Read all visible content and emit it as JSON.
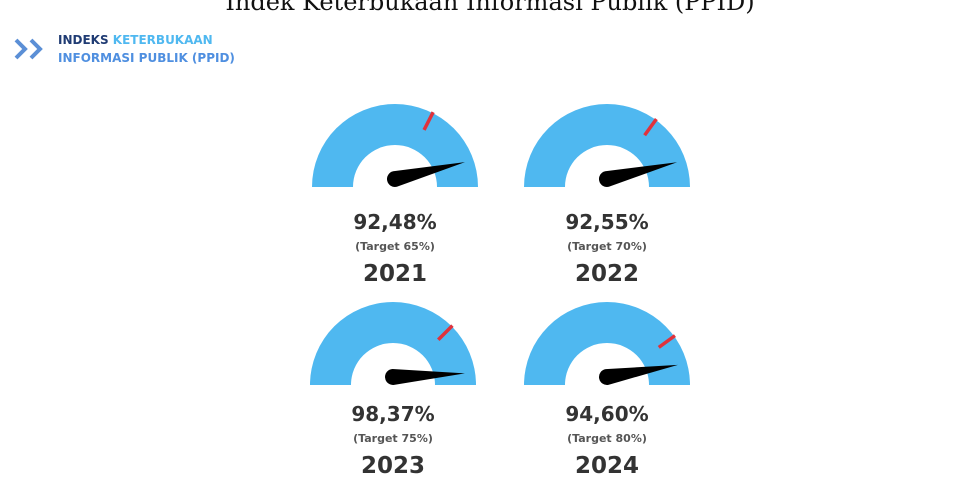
{
  "page_title": "Indek Keterbukaan Informasi Publik (PPID)",
  "header": {
    "line1_dark": "INDEKS",
    "line1_light": "KETERBUKAAN",
    "line2": "INFORMASI PUBLIK (PPID)"
  },
  "chart_data": [
    {
      "type": "gauge",
      "title": "2021",
      "values": [
        92.48
      ],
      "value_labels": [
        "92,48%"
      ],
      "target": 65,
      "target_label": "(Target 65%)",
      "ylim": [
        0,
        100
      ],
      "color": "#4fb8f0",
      "target_color": "#e0323c",
      "needle_color": "#000000"
    },
    {
      "type": "gauge",
      "title": "2022",
      "values": [
        92.55
      ],
      "value_labels": [
        "92,55%"
      ],
      "target": 70,
      "target_label": "(Target 70%)",
      "ylim": [
        0,
        100
      ],
      "color": "#4fb8f0",
      "target_color": "#e0323c",
      "needle_color": "#000000"
    },
    {
      "type": "gauge",
      "title": "2023",
      "values": [
        98.37
      ],
      "value_labels": [
        "98,37%"
      ],
      "target": 75,
      "target_label": "(Target 75%)",
      "ylim": [
        0,
        100
      ],
      "color": "#4fb8f0",
      "target_color": "#e0323c",
      "needle_color": "#000000"
    },
    {
      "type": "gauge",
      "title": "2024",
      "values": [
        94.6
      ],
      "value_labels": [
        "94,60%"
      ],
      "target": 80,
      "target_label": "(Target 80%)",
      "ylim": [
        0,
        100
      ],
      "color": "#4fb8f0",
      "target_color": "#e0323c",
      "needle_color": "#000000"
    }
  ]
}
